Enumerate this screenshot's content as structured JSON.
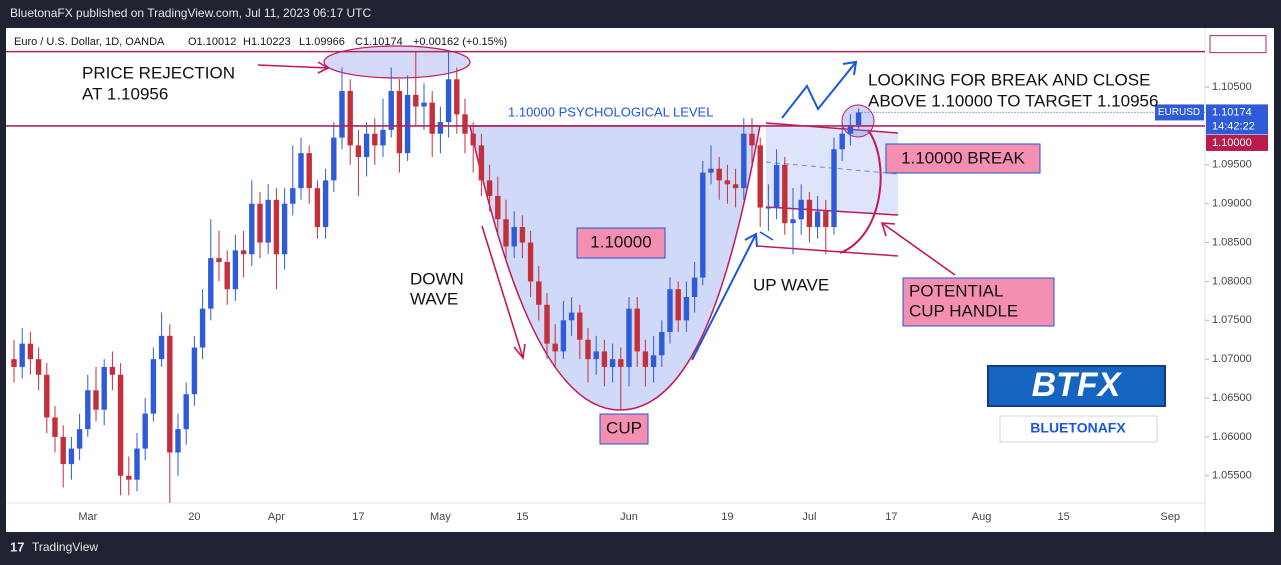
{
  "header": {
    "publisher": "BluetonaFX published on TradingView.com, Jul 11, 2023 06:17 UTC",
    "footer": "TradingView"
  },
  "chart_data": {
    "type": "candlestick",
    "symbol": "Euro / U.S. Dollar, 1D, OANDA",
    "ohlc_labels": [
      "O1.10012",
      "H1.10223",
      "L1.09966",
      "C1.10174"
    ],
    "change": "+0.00162 (+0.15%)",
    "ticker": "EURUSD",
    "countdown": "14:42:22",
    "up_color": "#2f5bd8",
    "down_color": "#c3303b",
    "grid": false,
    "ylim": [
      1.0515,
      1.1126
    ],
    "yticks": [
      {
        "value": 1.055,
        "label": "1.05500"
      },
      {
        "value": 1.06,
        "label": "1.06000"
      },
      {
        "value": 1.065,
        "label": "1.06500"
      },
      {
        "value": 1.07,
        "label": "1.07000"
      },
      {
        "value": 1.075,
        "label": "1.07500"
      },
      {
        "value": 1.08,
        "label": "1.08000"
      },
      {
        "value": 1.085,
        "label": "1.08500"
      },
      {
        "value": 1.09,
        "label": "1.09000"
      },
      {
        "value": 1.095,
        "label": "1.09500"
      },
      {
        "value": 1.105,
        "label": "1.10500"
      }
    ],
    "hlines": [
      {
        "value": 1.10956,
        "color": "#b0245a"
      },
      {
        "value": 1.1,
        "label": "1.10000",
        "color": "#b0245a"
      }
    ],
    "categories": [
      null,
      null,
      null,
      null,
      null,
      null,
      null,
      null,
      null,
      "Mar",
      null,
      null,
      null,
      null,
      null,
      null,
      null,
      null,
      null,
      null,
      null,
      null,
      "20",
      null,
      null,
      null,
      null,
      null,
      null,
      null,
      null,
      null,
      "Apr",
      null,
      null,
      null,
      null,
      null,
      null,
      null,
      null,
      null,
      "17",
      null,
      null,
      null,
      null,
      null,
      null,
      null,
      null,
      null,
      "May",
      null,
      null,
      null,
      null,
      null,
      null,
      null,
      null,
      null,
      "15",
      null,
      null,
      null,
      null,
      null,
      null,
      null,
      null,
      null,
      null,
      null,
      null,
      "Jun",
      null,
      null,
      null,
      null,
      null,
      null,
      null,
      null,
      null,
      null,
      null,
      "19",
      null,
      null,
      null,
      null,
      null,
      null,
      null,
      null,
      null,
      "Jul",
      null,
      null,
      null,
      null,
      null,
      null,
      null,
      null,
      null,
      "17",
      null,
      null,
      null,
      null,
      null,
      null,
      null,
      null,
      null,
      null,
      "Aug",
      null,
      null,
      null,
      null,
      null,
      null,
      null,
      null,
      null,
      "15",
      null,
      null,
      null,
      null,
      null,
      null,
      null,
      null,
      null,
      null,
      null,
      null,
      "Sep"
    ],
    "open": [
      1.07,
      1.069,
      1.072,
      1.07,
      1.068,
      1.0625,
      1.06,
      1.0565,
      1.0585,
      1.061,
      1.066,
      1.0635,
      1.069,
      1.068,
      1.055,
      1.0545,
      1.0585,
      1.063,
      1.07,
      1.073,
      1.058,
      1.061,
      1.0655,
      1.0715,
      1.0765,
      1.083,
      1.0825,
      1.079,
      1.084,
      1.0835,
      1.09,
      1.085,
      1.0905,
      1.0835,
      1.09,
      1.092,
      1.0965,
      1.092,
      1.087,
      1.093,
      1.0985,
      1.1045,
      1.0975,
      1.096,
      1.099,
      1.0975,
      1.0995,
      1.1045,
      1.0965,
      1.104,
      1.1025,
      1.103,
      1.099,
      1.1005,
      1.106,
      1.1015,
      1.099,
      1.0975,
      1.093,
      1.091,
      1.088,
      1.0845,
      1.087,
      1.085,
      1.08,
      1.077,
      1.072,
      1.071,
      1.075,
      1.076,
      1.0725,
      1.07,
      1.071,
      1.069,
      1.07,
      1.069,
      1.0765,
      1.071,
      1.069,
      1.0705,
      1.0735,
      1.079,
      1.075,
      1.078,
      1.0805,
      1.094,
      1.0945,
      1.093,
      1.0925,
      1.092,
      1.099,
      1.0975,
      1.0895,
      1.0895,
      1.095,
      1.0875,
      1.088,
      1.0905,
      1.087,
      1.089,
      1.087,
      1.097,
      1.099,
      1.10012,
      null,
      null,
      null,
      null,
      null,
      null,
      null,
      null,
      null,
      null,
      null,
      null,
      null,
      null,
      null,
      null,
      null,
      null,
      null,
      null,
      null,
      null,
      null,
      null,
      null,
      null,
      null,
      null,
      null,
      null,
      null,
      null,
      null,
      null,
      null,
      null,
      null,
      null
    ],
    "high": [
      1.0725,
      1.074,
      1.0735,
      1.0715,
      1.0695,
      1.064,
      1.0615,
      1.06,
      1.063,
      1.068,
      1.069,
      1.07,
      1.071,
      1.0695,
      1.0575,
      1.0605,
      1.065,
      1.0715,
      1.076,
      1.0745,
      1.063,
      1.067,
      1.073,
      1.079,
      1.088,
      1.0865,
      1.084,
      1.086,
      1.0865,
      1.093,
      1.0915,
      1.0925,
      1.092,
      1.092,
      1.0975,
      1.0985,
      1.0975,
      1.093,
      1.0945,
      1.1005,
      1.1075,
      1.106,
      1.0995,
      1.1005,
      1.101,
      1.1035,
      1.1075,
      1.106,
      1.1065,
      1.1095,
      1.1055,
      1.1045,
      1.1025,
      1.1095,
      1.1075,
      1.1035,
      1.1005,
      1.099,
      1.095,
      1.0935,
      1.0905,
      1.089,
      1.0885,
      1.0865,
      1.082,
      1.0785,
      1.0745,
      1.0775,
      1.078,
      1.077,
      1.074,
      1.073,
      1.0725,
      1.072,
      1.0715,
      1.078,
      1.078,
      1.0725,
      1.073,
      1.075,
      1.0805,
      1.08,
      1.08,
      1.0825,
      1.0955,
      1.0975,
      1.096,
      1.095,
      1.0945,
      1.101,
      1.101,
      1.0985,
      1.0925,
      1.097,
      1.096,
      1.092,
      1.0925,
      1.0915,
      1.091,
      1.0905,
      1.0985,
      1.1005,
      1.1015,
      1.10223,
      null,
      null,
      null,
      null,
      null,
      null,
      null,
      null,
      null,
      null,
      null,
      null,
      null,
      null,
      null,
      null,
      null,
      null,
      null,
      null,
      null,
      null,
      null,
      null,
      null,
      null,
      null,
      null,
      null,
      null,
      null,
      null,
      null,
      null,
      null,
      null,
      null,
      null
    ],
    "low": [
      1.067,
      1.0675,
      1.068,
      1.066,
      1.0605,
      1.058,
      1.0535,
      1.0545,
      1.057,
      1.06,
      1.062,
      1.0615,
      1.066,
      1.0525,
      1.0525,
      1.053,
      1.057,
      1.062,
      1.069,
      1.0515,
      1.055,
      1.059,
      1.064,
      1.07,
      1.075,
      1.08,
      1.077,
      1.0775,
      1.0805,
      1.082,
      1.083,
      1.0835,
      1.079,
      1.0815,
      1.0885,
      1.0905,
      1.09,
      1.0855,
      1.0855,
      1.0915,
      1.097,
      1.095,
      1.091,
      1.0935,
      1.095,
      1.096,
      1.0985,
      1.094,
      1.0955,
      1.1,
      1.0995,
      1.096,
      1.0965,
      1.0985,
      1.099,
      1.0965,
      1.094,
      1.091,
      1.089,
      1.086,
      1.083,
      1.083,
      1.083,
      1.078,
      1.075,
      1.07,
      1.069,
      1.07,
      1.073,
      1.07,
      1.067,
      1.068,
      1.0665,
      1.067,
      1.0635,
      1.0665,
      1.069,
      1.0665,
      1.067,
      1.069,
      1.072,
      1.0735,
      1.0735,
      1.076,
      1.0795,
      1.0925,
      1.0905,
      1.09,
      1.0895,
      1.0905,
      1.095,
      1.087,
      1.0865,
      1.088,
      1.086,
      1.0835,
      1.086,
      1.085,
      1.0855,
      1.0835,
      1.086,
      1.0955,
      1.0975,
      1.09966,
      null,
      null,
      null,
      null,
      null,
      null,
      null,
      null,
      null,
      null,
      null,
      null,
      null,
      null,
      null,
      null,
      null,
      null,
      null,
      null,
      null,
      null,
      null,
      null,
      null,
      null,
      null,
      null,
      null,
      null,
      null,
      null,
      null,
      null,
      null,
      null,
      null,
      null
    ],
    "close": [
      1.069,
      1.072,
      1.07,
      1.068,
      1.0625,
      1.06,
      1.0565,
      1.0585,
      1.061,
      1.066,
      1.0635,
      1.069,
      1.068,
      1.055,
      1.0545,
      1.0585,
      1.063,
      1.07,
      1.073,
      1.058,
      1.061,
      1.0655,
      1.0715,
      1.0765,
      1.083,
      1.0825,
      1.079,
      1.084,
      1.0835,
      1.09,
      1.085,
      1.0905,
      1.0835,
      1.09,
      1.092,
      1.0965,
      1.092,
      1.087,
      1.093,
      1.0985,
      1.1045,
      1.0975,
      1.096,
      1.099,
      1.0975,
      1.0995,
      1.1045,
      1.0965,
      1.104,
      1.1025,
      1.103,
      1.099,
      1.1005,
      1.106,
      1.1015,
      1.099,
      1.0975,
      1.093,
      1.091,
      1.088,
      1.0845,
      1.087,
      1.085,
      1.08,
      1.077,
      1.072,
      1.071,
      1.075,
      1.076,
      1.0725,
      1.07,
      1.071,
      1.069,
      1.07,
      1.069,
      1.0765,
      1.071,
      1.069,
      1.0705,
      1.0735,
      1.079,
      1.075,
      1.078,
      1.0805,
      1.094,
      1.0945,
      1.093,
      1.0925,
      1.092,
      1.099,
      1.0975,
      1.0895,
      1.0895,
      1.095,
      1.0875,
      1.088,
      1.0905,
      1.087,
      1.089,
      1.087,
      1.097,
      1.099,
      1.1001,
      1.10174,
      null,
      null,
      null,
      null,
      null,
      null,
      null,
      null,
      null,
      null,
      null,
      null,
      null,
      null,
      null,
      null,
      null,
      null,
      null,
      null,
      null,
      null,
      null,
      null,
      null,
      null,
      null,
      null,
      null,
      null,
      null,
      null,
      null,
      null,
      null,
      null,
      null,
      null
    ],
    "annotations": {
      "price_rejection": [
        "PRICE REJECTION",
        "AT 1.10956"
      ],
      "psych_level": "1.10000 PSYCHOLOGICAL LEVEL",
      "looking": [
        "LOOKING FOR BREAK AND CLOSE",
        "ABOVE 1.10000 TO TARGET 1.10956"
      ],
      "break_box": "1.10000 BREAK",
      "level_box": "1.10000",
      "down_wave": [
        "DOWN",
        "WAVE"
      ],
      "up_wave": "UP WAVE",
      "cup": "CUP",
      "handle": [
        "POTENTIAL",
        "CUP HANDLE"
      ],
      "logo": "BTFX",
      "logo_sub": "BLUETONAFX"
    }
  }
}
